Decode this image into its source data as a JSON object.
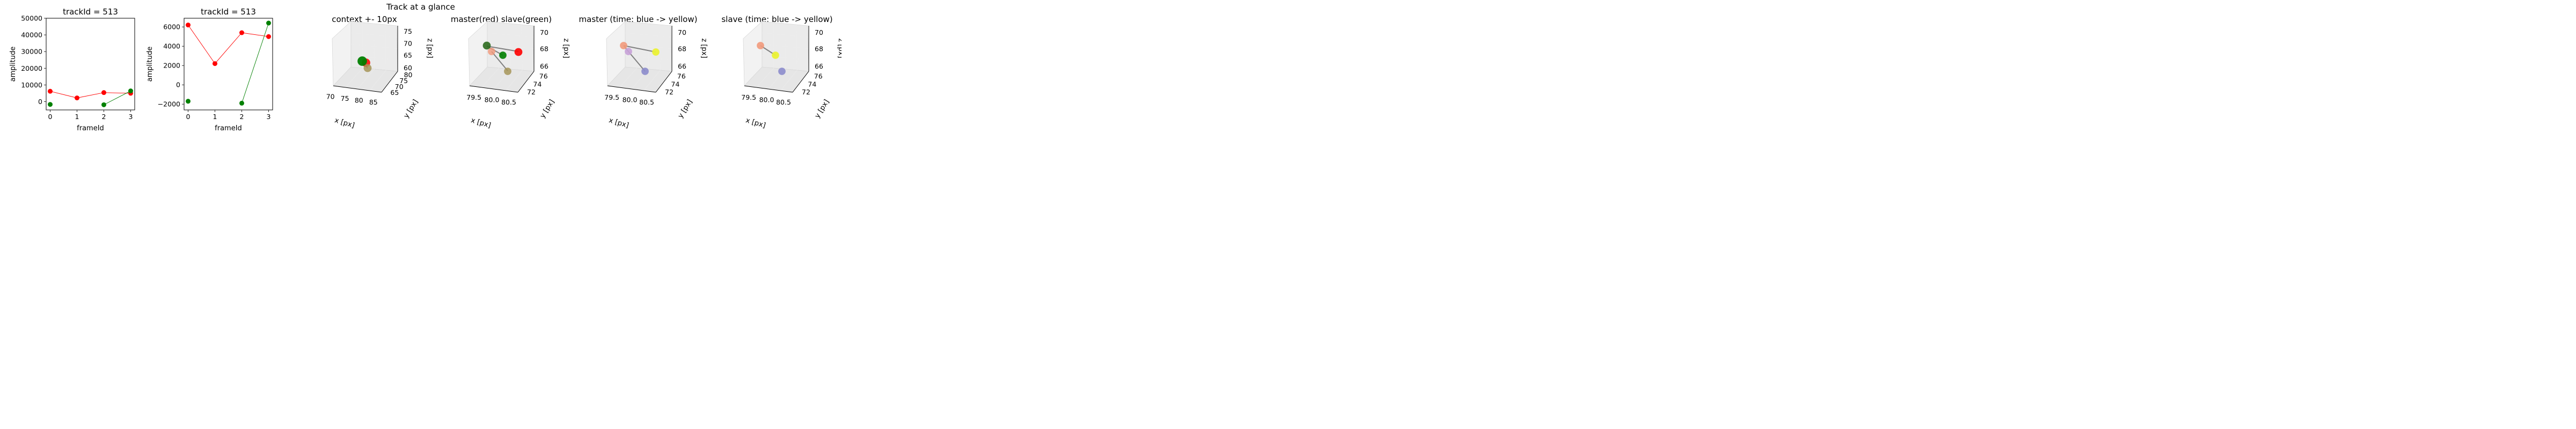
{
  "suptitle": "Track at a glance",
  "colors": {
    "master": "#ff0000",
    "slave": "#008000",
    "path": "#808080",
    "context_gold": "#a69558",
    "blue": "#8c8ccc",
    "purple": "#c8a2d8",
    "salmon": "#f29a7c",
    "yellow": "#ebf236"
  },
  "chart_data": [
    {
      "type": "line",
      "title": "trackId = 513",
      "xlabel": "frameId",
      "ylabel": "amplitude",
      "xlim": [
        -0.15,
        3.15
      ],
      "ylim": [
        -5000,
        50000
      ],
      "xticks": [
        "0",
        "1",
        "2",
        "3"
      ],
      "yticks": [
        "0",
        "10000",
        "20000",
        "30000",
        "40000",
        "50000"
      ],
      "series": [
        {
          "key": "master",
          "x": [
            0,
            1,
            2,
            3
          ],
          "y": [
            6200,
            2200,
            5400,
            5000
          ]
        },
        {
          "key": "slave",
          "x": [
            0,
            2,
            3
          ],
          "y": [
            -1700,
            -1900,
            6400
          ],
          "connected": [
            [
              2,
              3
            ]
          ]
        }
      ]
    },
    {
      "type": "line",
      "title": "trackId = 513",
      "xlabel": "frameId",
      "ylabel": "amplitude",
      "xlim": [
        -0.15,
        3.15
      ],
      "ylim": [
        -2600,
        6900
      ],
      "xticks": [
        "0",
        "1",
        "2",
        "3"
      ],
      "yticks": [
        "−2000",
        "0",
        "2000",
        "4000",
        "6000"
      ],
      "series": [
        {
          "key": "master",
          "x": [
            0,
            1,
            2,
            3
          ],
          "y": [
            6200,
            2200,
            5400,
            5000
          ]
        },
        {
          "key": "slave",
          "x": [
            0,
            2,
            3
          ],
          "y": [
            -1700,
            -1900,
            6400
          ],
          "connected": [
            [
              2,
              3
            ]
          ]
        }
      ]
    },
    {
      "type": "scatter3d",
      "title": "context +- 10px",
      "xlabel": "x [px]",
      "ylabel": "y [px]",
      "zlabel": "z [px]",
      "xticks": [
        "70",
        "75",
        "80",
        "85"
      ],
      "yticks": [
        "65",
        "70",
        "75",
        "80"
      ],
      "zticks": [
        "60",
        "65",
        "70",
        "75"
      ]
    },
    {
      "type": "scatter3d",
      "title": "master(red) slave(green)",
      "xlabel": "x [px]",
      "ylabel": "y [px]",
      "zlabel": "z [px]",
      "xticks": [
        "79.5",
        "80.0",
        "80.5"
      ],
      "yticks": [
        "72",
        "74",
        "76"
      ],
      "zticks": [
        "66",
        "68",
        "70"
      ]
    },
    {
      "type": "scatter3d",
      "title": "master (time: blue -> yellow)",
      "xlabel": "x [px]",
      "ylabel": "y [px]",
      "zlabel": "z [px]",
      "xticks": [
        "79.5",
        "80.0",
        "80.5"
      ],
      "yticks": [
        "72",
        "74",
        "76"
      ],
      "zticks": [
        "66",
        "68",
        "70"
      ]
    },
    {
      "type": "scatter3d",
      "title": "slave (time: blue -> yellow)",
      "xlabel": "x [px]",
      "ylabel": "y [px]",
      "zlabel": "z [px]",
      "xticks": [
        "79.5",
        "80.0",
        "80.5"
      ],
      "yticks": [
        "72",
        "74",
        "76"
      ],
      "zticks": [
        "66",
        "68",
        "70"
      ]
    }
  ]
}
